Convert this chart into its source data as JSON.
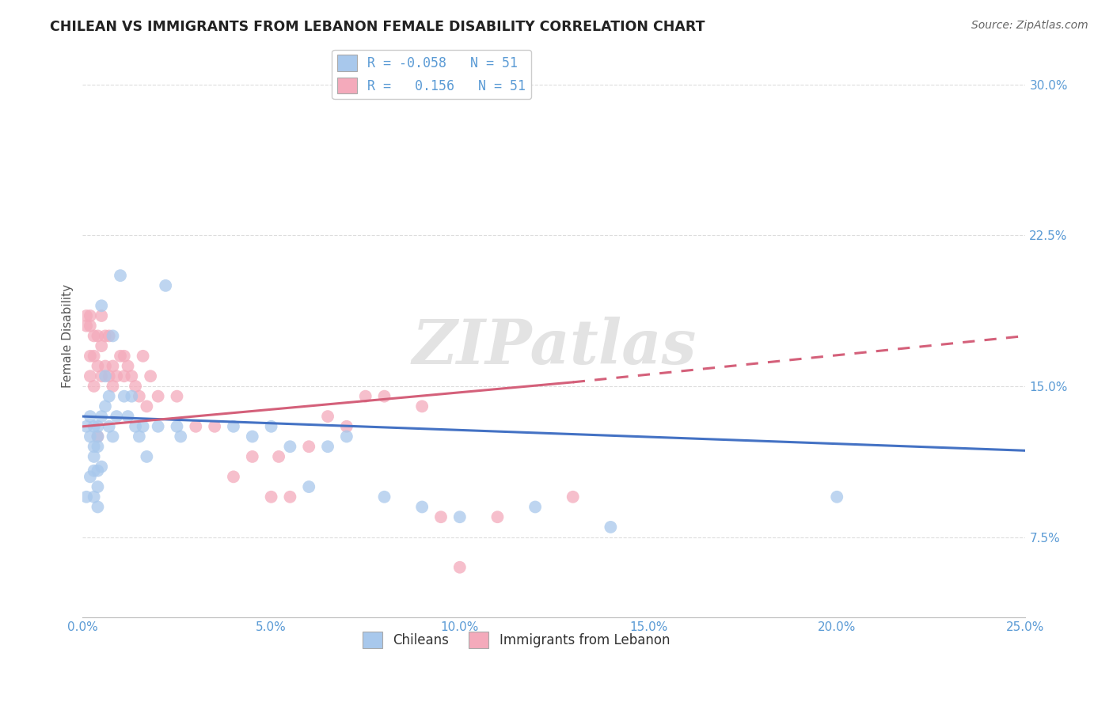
{
  "title": "CHILEAN VS IMMIGRANTS FROM LEBANON FEMALE DISABILITY CORRELATION CHART",
  "source": "Source: ZipAtlas.com",
  "ylabel": "Female Disability",
  "xlabel_ticks": [
    "0.0%",
    "5.0%",
    "10.0%",
    "15.0%",
    "20.0%",
    "25.0%"
  ],
  "xlabel_vals": [
    0.0,
    0.05,
    0.1,
    0.15,
    0.2,
    0.25
  ],
  "ylabel_ticks": [
    "7.5%",
    "15.0%",
    "22.5%",
    "30.0%"
  ],
  "ylabel_vals": [
    0.075,
    0.15,
    0.225,
    0.3
  ],
  "xmin": 0.0,
  "xmax": 0.25,
  "ymin": 0.035,
  "ymax": 0.315,
  "legend_blue_r": "-0.058",
  "legend_pink_r": "0.156",
  "legend_n": "51",
  "chileans_color": "#A8C8EC",
  "lebanon_color": "#F4AABB",
  "chileans_x": [
    0.001,
    0.001,
    0.002,
    0.002,
    0.002,
    0.003,
    0.003,
    0.003,
    0.003,
    0.003,
    0.004,
    0.004,
    0.004,
    0.004,
    0.004,
    0.004,
    0.005,
    0.005,
    0.005,
    0.006,
    0.006,
    0.007,
    0.007,
    0.008,
    0.008,
    0.009,
    0.01,
    0.011,
    0.012,
    0.013,
    0.014,
    0.015,
    0.016,
    0.017,
    0.02,
    0.022,
    0.025,
    0.026,
    0.04,
    0.045,
    0.05,
    0.055,
    0.06,
    0.065,
    0.07,
    0.08,
    0.09,
    0.1,
    0.12,
    0.14,
    0.2
  ],
  "chileans_y": [
    0.13,
    0.095,
    0.135,
    0.125,
    0.105,
    0.13,
    0.12,
    0.115,
    0.108,
    0.095,
    0.125,
    0.12,
    0.108,
    0.1,
    0.09,
    0.13,
    0.19,
    0.135,
    0.11,
    0.155,
    0.14,
    0.145,
    0.13,
    0.175,
    0.125,
    0.135,
    0.205,
    0.145,
    0.135,
    0.145,
    0.13,
    0.125,
    0.13,
    0.115,
    0.13,
    0.2,
    0.13,
    0.125,
    0.13,
    0.125,
    0.13,
    0.12,
    0.1,
    0.12,
    0.125,
    0.095,
    0.09,
    0.085,
    0.09,
    0.08,
    0.095
  ],
  "lebanon_x": [
    0.001,
    0.001,
    0.002,
    0.002,
    0.002,
    0.002,
    0.003,
    0.003,
    0.003,
    0.004,
    0.004,
    0.004,
    0.005,
    0.005,
    0.005,
    0.006,
    0.006,
    0.007,
    0.007,
    0.008,
    0.008,
    0.009,
    0.01,
    0.011,
    0.011,
    0.012,
    0.013,
    0.014,
    0.015,
    0.016,
    0.017,
    0.018,
    0.02,
    0.025,
    0.03,
    0.035,
    0.04,
    0.045,
    0.05,
    0.052,
    0.055,
    0.06,
    0.065,
    0.07,
    0.075,
    0.08,
    0.09,
    0.095,
    0.1,
    0.11,
    0.13
  ],
  "lebanon_y": [
    0.18,
    0.185,
    0.185,
    0.18,
    0.165,
    0.155,
    0.175,
    0.165,
    0.15,
    0.175,
    0.16,
    0.125,
    0.185,
    0.17,
    0.155,
    0.175,
    0.16,
    0.175,
    0.155,
    0.16,
    0.15,
    0.155,
    0.165,
    0.165,
    0.155,
    0.16,
    0.155,
    0.15,
    0.145,
    0.165,
    0.14,
    0.155,
    0.145,
    0.145,
    0.13,
    0.13,
    0.105,
    0.115,
    0.095,
    0.115,
    0.095,
    0.12,
    0.135,
    0.13,
    0.145,
    0.145,
    0.14,
    0.085,
    0.06,
    0.085,
    0.095
  ],
  "watermark": "ZIPatlas",
  "grid_color": "#DDDDDD",
  "blue_line_color": "#4472C4",
  "pink_line_color": "#D4607A",
  "blue_line_start_x": 0.0,
  "blue_line_end_x": 0.25,
  "blue_line_start_y": 0.135,
  "blue_line_end_y": 0.118,
  "pink_line_start_x": 0.0,
  "pink_line_end_x": 0.13,
  "pink_line_end_x_dash": 0.25,
  "pink_line_start_y": 0.13,
  "pink_line_end_y": 0.152,
  "pink_line_end_y_dash": 0.175
}
